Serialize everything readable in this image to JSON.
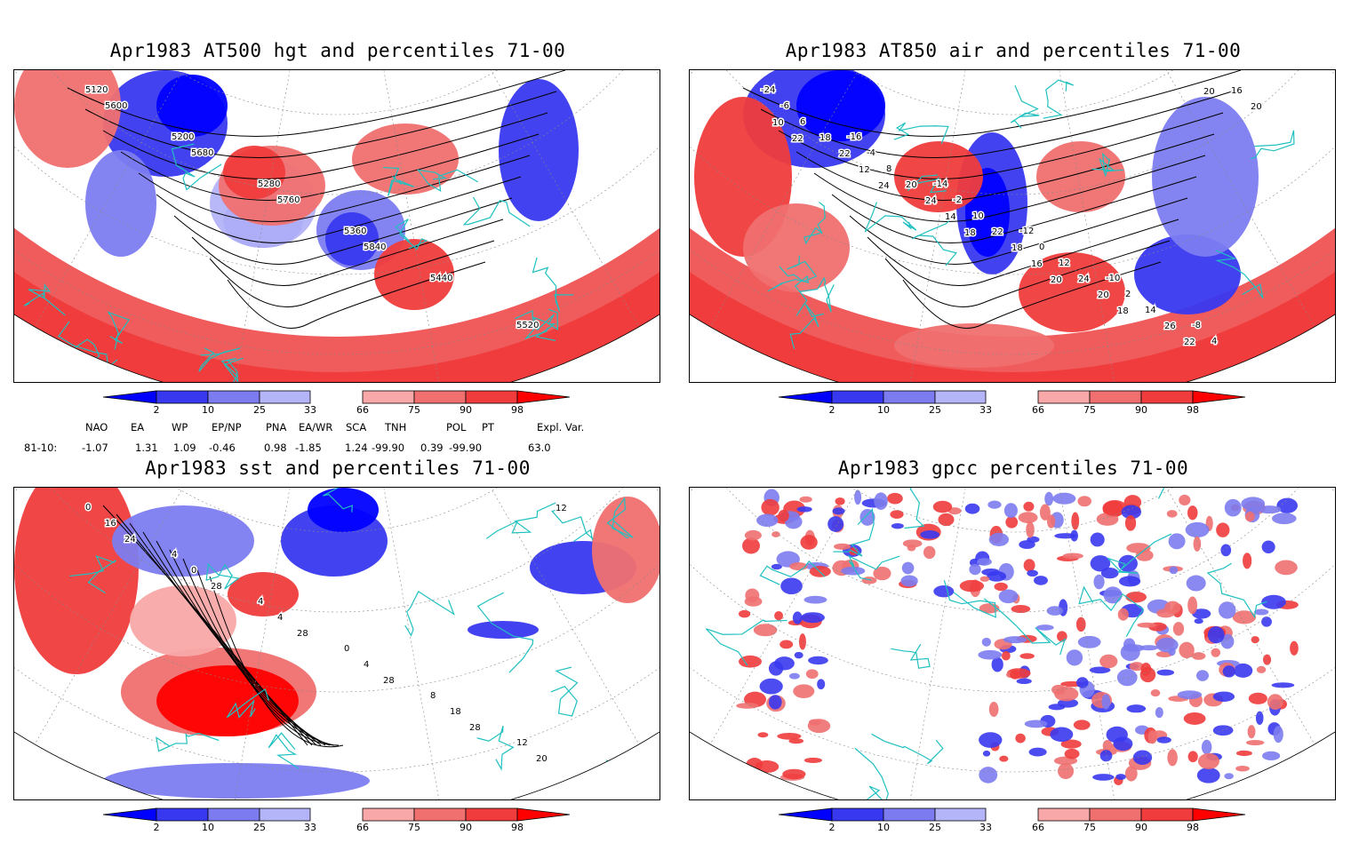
{
  "colors": {
    "blue_dark": "#0000ff",
    "blue_mid": "#3838f0",
    "blue_light": "#7c7cf0",
    "blue_pale": "#b4b4f8",
    "red_pale": "#f8a8a8",
    "red_light": "#f07070",
    "red_mid": "#f03c3c",
    "red_dark": "#ff0000",
    "coast": "#20c0c0",
    "contour": "#000000"
  },
  "panels": [
    {
      "title": "Apr1983 AT500 hgt and percentiles 71-00",
      "contour_labels": [
        "5120",
        "5200",
        "5280",
        "5360",
        "5440",
        "5520",
        "5600",
        "5680",
        "5760",
        "5840"
      ]
    },
    {
      "title": "Apr1983 AT850 air and percentiles 71-00",
      "contour_labels": [
        "-24",
        "-16",
        "-14",
        "-12",
        "-10",
        "-8",
        "-6",
        "-4",
        "-2",
        "0",
        "2",
        "4",
        "6",
        "8",
        "10",
        "12",
        "14",
        "16",
        "18",
        "20",
        "22",
        "24",
        "26",
        "20",
        "22",
        "24",
        "18",
        "20",
        "22",
        "10",
        "12",
        "14",
        "16",
        "18",
        "20",
        "22",
        "24",
        "18",
        "20"
      ]
    },
    {
      "title": "Apr1983 sst and percentiles 71-00",
      "contour_labels": [
        "0",
        "4",
        "4",
        "0",
        "8",
        "12",
        "16",
        "0",
        "4",
        "4",
        "18",
        "20",
        "24",
        "28",
        "28",
        "28",
        "28",
        "12"
      ]
    },
    {
      "title": "Apr1983 gpcc percentiles 71-00",
      "contour_labels": []
    }
  ],
  "colorbar_ticks": [
    "2",
    "10",
    "25",
    "33",
    "66",
    "75",
    "90",
    "98"
  ],
  "indices": {
    "headers": [
      "NAO",
      "EA",
      "WP",
      "EP/NP",
      "PNA",
      "EA/WR",
      "SCA",
      "TNH",
      "POL",
      "PT",
      "Expl. Var."
    ],
    "row_label": "81-10:",
    "values": [
      "-1.07",
      "1.31",
      "1.09",
      "-0.46",
      "0.98",
      "-1.85",
      "1.24",
      "-99.90",
      "0.39",
      "-99.90",
      "63.0"
    ]
  }
}
